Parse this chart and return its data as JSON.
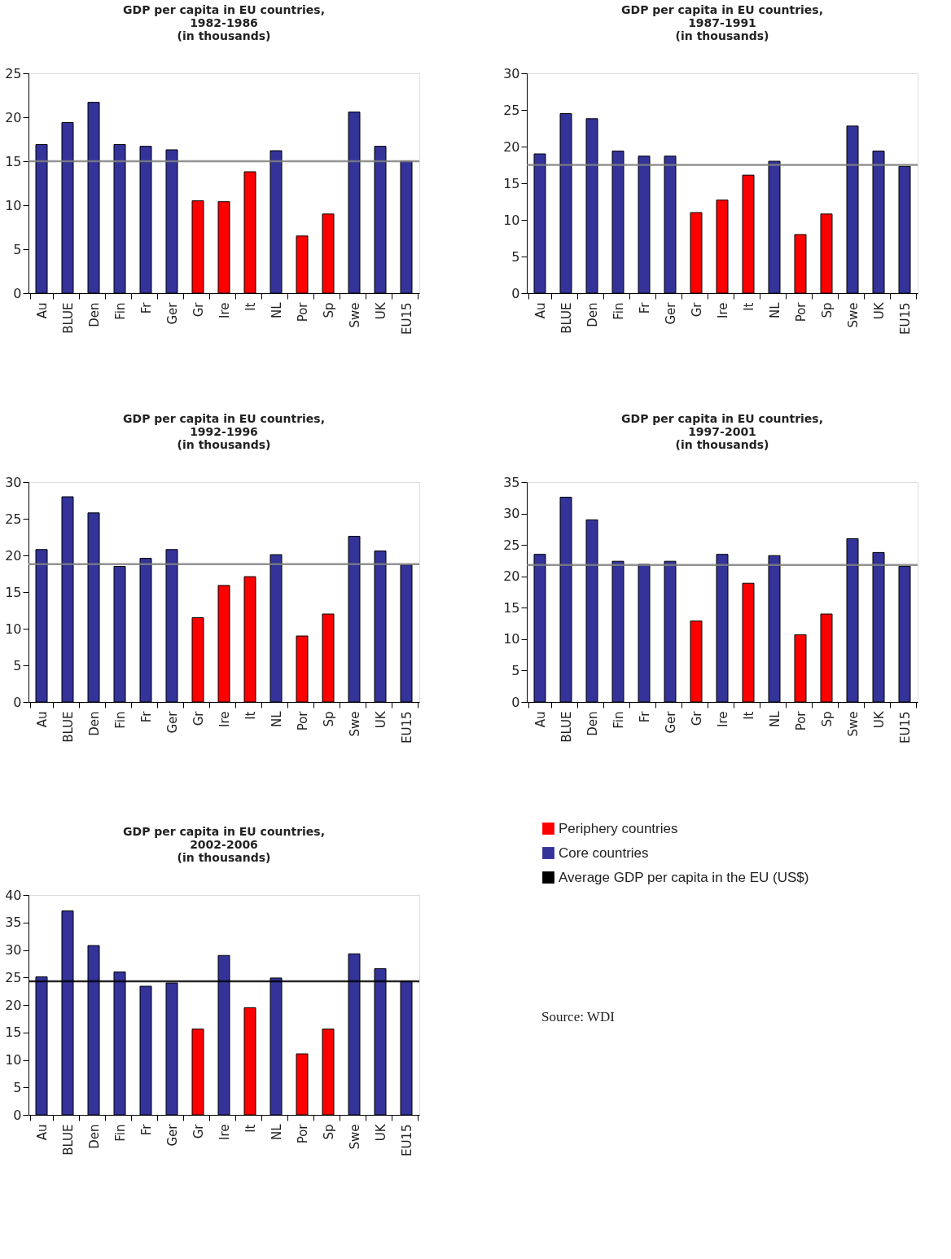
{
  "chart_data": [
    {
      "type": "bar",
      "title": "GDP per capita in EU countries,\n1982-1986\n(in thousands)",
      "categories": [
        "Au",
        "BLUE",
        "Den",
        "Fin",
        "Fr",
        "Ger",
        "Gr",
        "Ire",
        "It",
        "NL",
        "Por",
        "Sp",
        "Swe",
        "UK",
        "EU15"
      ],
      "series": [
        {
          "color": "#ff0000",
          "values": [
            null,
            null,
            null,
            null,
            null,
            null,
            10.5,
            10.4,
            13.8,
            null,
            6.5,
            9.0,
            null,
            null,
            null
          ]
        },
        {
          "color": "#333399",
          "values": [
            16.9,
            19.4,
            21.7,
            16.9,
            16.7,
            16.3,
            null,
            null,
            null,
            16.2,
            null,
            null,
            20.6,
            16.7,
            15.0
          ]
        }
      ],
      "ylim": [
        0,
        25
      ],
      "yticks": [
        0,
        5,
        10,
        15,
        20,
        25
      ],
      "ref_lines": [
        {
          "axis": "y",
          "value": 15.0,
          "color": "#808080"
        }
      ]
    },
    {
      "type": "bar",
      "title": "GDP per capita in EU countries,\n1987-1991\n(in thousands)",
      "categories": [
        "Au",
        "BLUE",
        "Den",
        "Fin",
        "Fr",
        "Ger",
        "Gr",
        "Ire",
        "It",
        "NL",
        "Por",
        "Sp",
        "Swe",
        "UK",
        "EU15"
      ],
      "series": [
        {
          "color": "#ff0000",
          "values": [
            null,
            null,
            null,
            null,
            null,
            null,
            11.0,
            12.7,
            16.1,
            null,
            8.0,
            10.8,
            null,
            null,
            null
          ]
        },
        {
          "color": "#333399",
          "values": [
            19.0,
            24.5,
            23.8,
            19.4,
            18.7,
            18.7,
            null,
            null,
            null,
            18.0,
            null,
            null,
            22.8,
            19.4,
            17.3
          ]
        }
      ],
      "ylim": [
        0,
        30
      ],
      "yticks": [
        0,
        5,
        10,
        15,
        20,
        25,
        30
      ],
      "ref_lines": [
        {
          "axis": "y",
          "value": 17.5,
          "color": "#808080"
        }
      ]
    },
    {
      "type": "bar",
      "title": "GDP per capita in EU countries,\n1992-1996\n(in thousands)",
      "categories": [
        "Au",
        "BLUE",
        "Den",
        "Fin",
        "Fr",
        "Ger",
        "Gr",
        "Ire",
        "It",
        "NL",
        "Por",
        "Sp",
        "Swe",
        "UK",
        "EU15"
      ],
      "series": [
        {
          "color": "#ff0000",
          "values": [
            null,
            null,
            null,
            null,
            null,
            null,
            11.5,
            15.9,
            17.1,
            null,
            9.0,
            12.0,
            null,
            null,
            null
          ]
        },
        {
          "color": "#333399",
          "values": [
            20.8,
            28.0,
            25.8,
            18.5,
            19.6,
            20.8,
            null,
            null,
            null,
            20.1,
            null,
            null,
            22.6,
            20.6,
            18.7
          ]
        }
      ],
      "ylim": [
        0,
        30
      ],
      "yticks": [
        0,
        5,
        10,
        15,
        20,
        25,
        30
      ],
      "ref_lines": [
        {
          "axis": "y",
          "value": 18.8,
          "color": "#808080"
        }
      ]
    },
    {
      "type": "bar",
      "title": "GDP per capita in EU countries,\n1997-2001\n(in thousands)",
      "categories": [
        "Au",
        "BLUE",
        "Den",
        "Fin",
        "Fr",
        "Ger",
        "Gr",
        "Ire",
        "It",
        "NL",
        "Por",
        "Sp",
        "Swe",
        "UK",
        "EU15"
      ],
      "series": [
        {
          "color": "#ff0000",
          "values": [
            null,
            null,
            null,
            null,
            null,
            null,
            12.9,
            null,
            18.9,
            null,
            10.7,
            14.0,
            null,
            null,
            null
          ]
        },
        {
          "color": "#333399",
          "values": [
            23.5,
            32.6,
            29.0,
            22.4,
            21.9,
            22.4,
            null,
            23.5,
            null,
            23.3,
            null,
            null,
            26.0,
            23.8,
            21.6
          ]
        }
      ],
      "ylim": [
        0,
        35
      ],
      "yticks": [
        0,
        5,
        10,
        15,
        20,
        25,
        30,
        35
      ],
      "ref_lines": [
        {
          "axis": "y",
          "value": 21.8,
          "color": "#808080"
        }
      ]
    },
    {
      "type": "bar",
      "title": "GDP per capita in EU countries,\n2002-2006\n(in thousands)",
      "categories": [
        "Au",
        "BLUE",
        "Den",
        "Fin",
        "Fr",
        "Ger",
        "Gr",
        "Ire",
        "It",
        "NL",
        "Por",
        "Sp",
        "Swe",
        "UK",
        "EU15"
      ],
      "series": [
        {
          "name": "Periphery countries",
          "color": "#ff0000",
          "values": [
            null,
            null,
            null,
            null,
            null,
            null,
            15.6,
            null,
            19.5,
            null,
            11.1,
            15.6,
            null,
            null,
            null
          ]
        },
        {
          "name": "Core countries",
          "color": "#333399",
          "values": [
            25.1,
            37.1,
            30.8,
            26.0,
            23.4,
            24.0,
            null,
            29.0,
            null,
            24.9,
            null,
            null,
            29.3,
            26.6,
            24.3
          ]
        }
      ],
      "ylim": [
        0,
        40
      ],
      "yticks": [
        0,
        5,
        10,
        15,
        20,
        25,
        30,
        35,
        40
      ],
      "ref_lines": [
        {
          "axis": "y",
          "value": 24.3,
          "color": "#000000",
          "label": "Average GDP per capita in the EU (US$)"
        }
      ],
      "legend": "right",
      "annotations": [
        "Source: WDI"
      ]
    }
  ]
}
